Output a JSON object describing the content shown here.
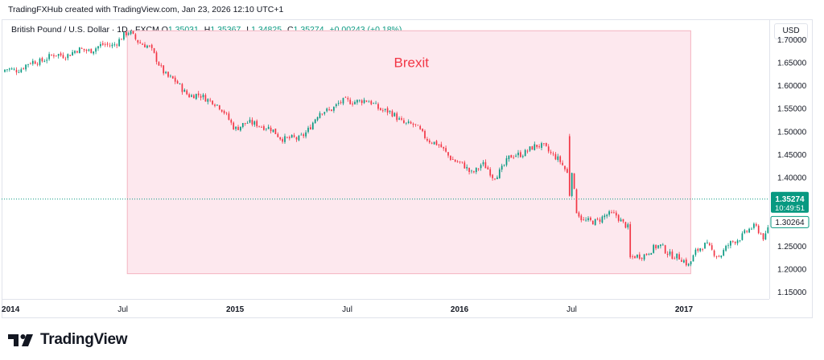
{
  "header": {
    "attribution": "TradingFXHub created with TradingView.com, Jan 23, 2026 12:10 UTC+1"
  },
  "legend": {
    "symbol": "British Pound / U.S. Dollar · 1D · FXCM",
    "open_label": "O",
    "open": "1.35031",
    "high_label": "H",
    "high": "1.35367",
    "low_label": "L",
    "low": "1.34825",
    "close_label": "C",
    "close": "1.35274",
    "change": "+0.00243 (+0.18%)"
  },
  "currency_button": "USD",
  "price_tags": {
    "last": "1.35274",
    "countdown": "10:49:51",
    "reference": "1.30264"
  },
  "footer": {
    "brand": "TradingView"
  },
  "colors": {
    "up": "#089981",
    "down": "#f23645",
    "annotation_fill": "#fde8ee",
    "annotation_border": "#f4b4c0",
    "annotation_text": "#f23645",
    "last_price_bg": "#089981"
  },
  "icons": {
    "logo": "tradingview-logo-icon"
  },
  "chart_data": {
    "type": "candlestick",
    "title": "British Pound / U.S. Dollar · 1D · FXCM",
    "xlabel": "",
    "ylabel": "USD",
    "x_range": [
      2014.0,
      2017.25
    ],
    "ylim": [
      1.135,
      1.745
    ],
    "y_ticks": [
      1.7,
      1.65,
      1.6,
      1.55,
      1.5,
      1.45,
      1.4,
      1.25,
      1.2,
      1.15
    ],
    "y_tick_labels": [
      "1.70000",
      "1.65000",
      "1.60000",
      "1.55000",
      "1.50000",
      "1.45000",
      "1.40000",
      "1.25000",
      "1.20000",
      "1.15000"
    ],
    "x_ticks": [
      2014.0,
      2014.5,
      2015.0,
      2015.5,
      2016.0,
      2016.5,
      2017.0
    ],
    "x_tick_labels": [
      "2014",
      "Jul",
      "2015",
      "Jul",
      "2016",
      "Jul",
      "2017"
    ],
    "x_tick_bold": [
      true,
      false,
      true,
      false,
      true,
      false,
      true
    ],
    "grid": false,
    "last_price": 1.35274,
    "reference_price": 1.30264,
    "annotation": {
      "label": "Brexit",
      "x_start": 2014.52,
      "x_end": 2017.03,
      "y_low": 1.19,
      "y_high": 1.72
    },
    "series": [
      {
        "name": "GBP/USD close",
        "x": [
          2013.96,
          2014.05,
          2014.15,
          2014.25,
          2014.35,
          2014.45,
          2014.53,
          2014.62,
          2014.7,
          2014.8,
          2014.9,
          2015.0,
          2015.1,
          2015.2,
          2015.28,
          2015.38,
          2015.46,
          2015.54,
          2015.62,
          2015.72,
          2015.8,
          2015.9,
          2016.0,
          2016.05,
          2016.1,
          2016.15,
          2016.22,
          2016.3,
          2016.38,
          2016.45,
          2016.48,
          2016.49,
          2016.52,
          2016.55,
          2016.62,
          2016.7,
          2016.75,
          2016.76,
          2016.8,
          2016.85,
          2016.9,
          2016.95,
          2017.02,
          2017.05,
          2017.1,
          2017.16,
          2017.22,
          2017.27,
          2017.32,
          2017.36,
          2017.38
        ],
        "values": [
          1.63,
          1.64,
          1.66,
          1.67,
          1.68,
          1.69,
          1.715,
          1.68,
          1.62,
          1.58,
          1.57,
          1.51,
          1.52,
          1.49,
          1.48,
          1.54,
          1.56,
          1.57,
          1.56,
          1.53,
          1.51,
          1.47,
          1.43,
          1.41,
          1.43,
          1.4,
          1.44,
          1.46,
          1.47,
          1.43,
          1.41,
          1.47,
          1.33,
          1.3,
          1.31,
          1.32,
          1.29,
          1.22,
          1.23,
          1.24,
          1.25,
          1.23,
          1.21,
          1.24,
          1.25,
          1.23,
          1.26,
          1.28,
          1.29,
          1.27,
          1.3
        ]
      }
    ]
  }
}
